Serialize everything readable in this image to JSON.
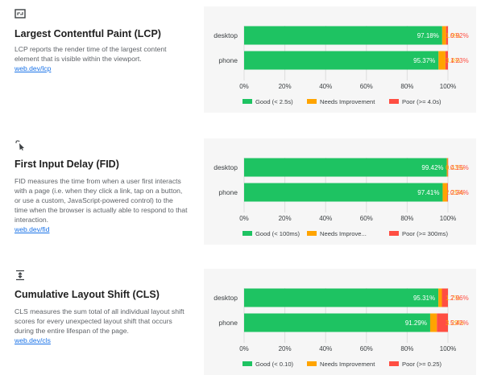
{
  "colors": {
    "good": "#1ec362",
    "needs": "#ffa400",
    "poor": "#ff4e42",
    "link": "#1a73e8"
  },
  "sections": [
    {
      "icon": "lcp-expand-icon",
      "title": "Largest Contentful Paint (LCP)",
      "description": "LCP reports the render time of the largest content element that is visible within the viewport.",
      "link": "web.dev/lcp"
    },
    {
      "icon": "fid-click-icon",
      "title": "First Input Delay (FID)",
      "description": "FID measures the time from when a user first interacts with a page (i.e. when they click a link, tap on a button, or use a custom, JavaScript-powered control) to the time when the browser is actually able to respond to that interaction.",
      "link": "web.dev/fid"
    },
    {
      "icon": "cls-shift-icon",
      "title": "Cumulative Layout Shift (CLS)",
      "description": "CLS measures the sum total of all individual layout shift scores for every unexpected layout shift that occurs during the entire lifespan of the page.",
      "link": "web.dev/cls"
    }
  ],
  "chart_data": [
    {
      "type": "bar",
      "stacked": true,
      "orientation": "horizontal",
      "categories": [
        "desktop",
        "phone"
      ],
      "series": [
        {
          "name": "Good (< 2.5s)",
          "values": [
            97.18,
            95.37
          ],
          "labels": [
            "97.18%",
            "95.37%"
          ]
        },
        {
          "name": "Needs Improvement",
          "values": [
            1.9,
            3.4
          ],
          "labels": [
            "1.9%",
            "3.4%"
          ]
        },
        {
          "name": "Poor (>= 4.0s)",
          "values": [
            0.92,
            1.23
          ],
          "labels": [
            "0.92%",
            "1.23%"
          ]
        }
      ],
      "xlim": [
        0,
        100
      ],
      "xticks": [
        "0%",
        "20%",
        "40%",
        "60%",
        "80%",
        "100%"
      ],
      "legend": "bottom"
    },
    {
      "type": "bar",
      "stacked": true,
      "orientation": "horizontal",
      "categories": [
        "desktop",
        "phone"
      ],
      "series": [
        {
          "name": "Good (< 100ms)",
          "values": [
            99.42,
            97.41
          ],
          "labels": [
            "99.42%",
            "97.41%"
          ]
        },
        {
          "name": "Needs Improve...",
          "values": [
            0.43,
            2.25
          ],
          "labels": [
            "0.43%",
            "2.25%"
          ]
        },
        {
          "name": "Poor (>= 300ms)",
          "values": [
            0.15,
            0.34
          ],
          "labels": [
            "0.15%",
            "0.34%"
          ]
        }
      ],
      "xlim": [
        0,
        100
      ],
      "xticks": [
        "0%",
        "20%",
        "40%",
        "60%",
        "80%",
        "100%"
      ],
      "legend": "bottom"
    },
    {
      "type": "bar",
      "stacked": true,
      "orientation": "horizontal",
      "categories": [
        "desktop",
        "phone"
      ],
      "series": [
        {
          "name": "Good (< 0.10)",
          "values": [
            95.31,
            91.29
          ],
          "labels": [
            "95.31%",
            "91.29%"
          ]
        },
        {
          "name": "Needs Improvement",
          "values": [
            1.73,
            3.29
          ],
          "labels": [
            "1.7%",
            "3.29%"
          ]
        },
        {
          "name": "Poor (>= 0.25)",
          "values": [
            2.96,
            5.42
          ],
          "labels": [
            "2.96%",
            "5.42%"
          ]
        }
      ],
      "xlim": [
        0,
        100
      ],
      "xticks": [
        "0%",
        "20%",
        "40%",
        "60%",
        "80%",
        "100%"
      ],
      "legend": "bottom"
    }
  ]
}
